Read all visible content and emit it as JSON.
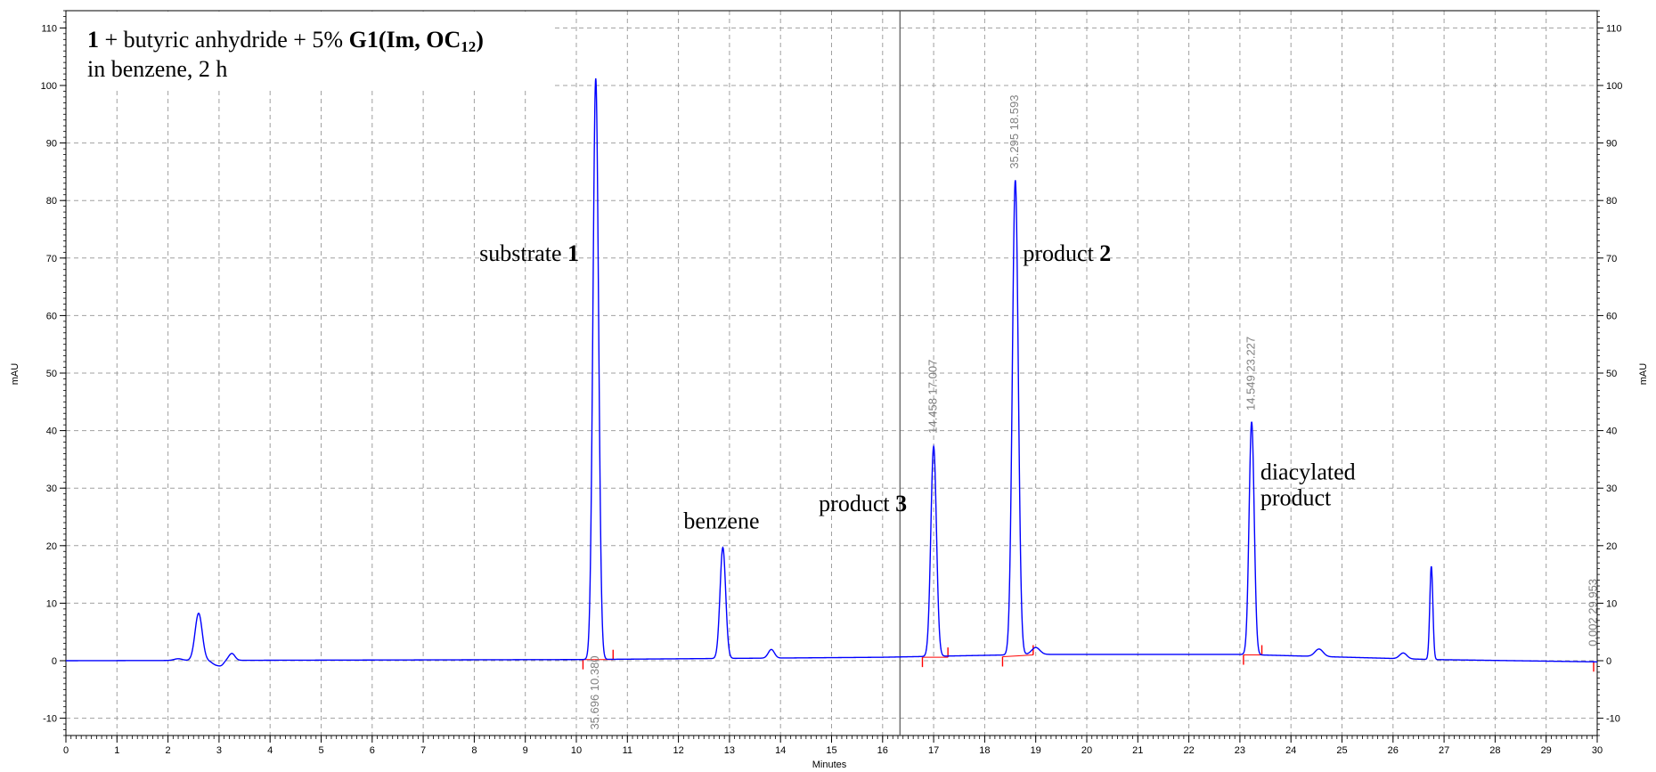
{
  "chart_data": {
    "type": "line",
    "title_line1": {
      "part1": "1",
      "part2": " + butyric anhydride + 5% ",
      "part3": "G1(Im, OC",
      "part3_sub": "12",
      "part4": ")"
    },
    "title_line2": "in benzene, 2 h",
    "xlabel": "Minutes",
    "ylabel_left": "mAU",
    "ylabel_right": "mAU",
    "xlim": [
      0,
      30
    ],
    "ylim": [
      -13,
      113
    ],
    "x_ticks": [
      0,
      1,
      2,
      3,
      4,
      5,
      6,
      7,
      8,
      9,
      10,
      11,
      12,
      13,
      14,
      15,
      16,
      17,
      18,
      19,
      20,
      21,
      22,
      23,
      24,
      25,
      26,
      27,
      28,
      29,
      30
    ],
    "y_ticks": [
      -10,
      0,
      10,
      20,
      30,
      40,
      50,
      60,
      70,
      80,
      90,
      100,
      110
    ],
    "grid": true,
    "cursor_line_x": 16.34,
    "series": [
      {
        "color": "#0000ff",
        "peaks": [
          {
            "rt": 2.2,
            "height": 0.3,
            "width": 0.08
          },
          {
            "rt": 2.6,
            "height": 8.2,
            "width": 0.07
          },
          {
            "rt": 3.25,
            "height": 1.2,
            "width": 0.06
          },
          {
            "rt": 10.38,
            "height": 101.0,
            "width": 0.055
          },
          {
            "rt": 12.87,
            "height": 19.3,
            "width": 0.055
          },
          {
            "rt": 13.82,
            "height": 1.5,
            "width": 0.06
          },
          {
            "rt": 17.0,
            "height": 36.5,
            "width": 0.055
          },
          {
            "rt": 18.6,
            "height": 82.5,
            "width": 0.058
          },
          {
            "rt": 19.0,
            "height": 1.2,
            "width": 0.08
          },
          {
            "rt": 23.23,
            "height": 40.5,
            "width": 0.05
          },
          {
            "rt": 24.55,
            "height": 1.3,
            "width": 0.08
          },
          {
            "rt": 26.2,
            "height": 1.0,
            "width": 0.07
          },
          {
            "rt": 26.75,
            "height": 16.2,
            "width": 0.03
          }
        ],
        "baseline": [
          [
            0,
            0
          ],
          [
            10.0,
            0.2
          ],
          [
            16.0,
            0.6
          ],
          [
            19.0,
            1.1
          ],
          [
            23.0,
            1.1
          ],
          [
            26.8,
            0.2
          ],
          [
            30.0,
            -0.2
          ]
        ]
      }
    ],
    "integration_marks": [
      {
        "x": 10.13,
        "y": 0.2,
        "dir": "down"
      },
      {
        "x": 10.72,
        "y": 0.2,
        "dir": "up"
      },
      {
        "x": 16.78,
        "y": 0.6,
        "dir": "down"
      },
      {
        "x": 17.28,
        "y": 0.6,
        "dir": "up"
      },
      {
        "x": 18.35,
        "y": 0.7,
        "dir": "down"
      },
      {
        "x": 18.95,
        "y": 1.0,
        "dir": "up"
      },
      {
        "x": 23.07,
        "y": 1.0,
        "dir": "down"
      },
      {
        "x": 23.43,
        "y": 1.0,
        "dir": "up"
      },
      {
        "x": 29.93,
        "y": -0.2,
        "dir": "down"
      }
    ],
    "peak_labels": [
      {
        "text": "35.696  10.380",
        "x": 10.38,
        "y": -12.0
      },
      {
        "text": "14.458  17.007",
        "x": 17.0,
        "y": 39.5
      },
      {
        "text": "35.295  18.593",
        "x": 18.6,
        "y": 85.5
      },
      {
        "text": "14.549  23.227",
        "x": 23.23,
        "y": 43.5
      },
      {
        "text": "0.002  29.953",
        "x": 29.93,
        "y": 2.5
      }
    ],
    "annotations": [
      {
        "text": "substrate ",
        "bold": "1",
        "x": 8.1,
        "y": 69.5
      },
      {
        "text": "benzene",
        "bold": "",
        "x": 12.1,
        "y": 23.0
      },
      {
        "text": "product ",
        "bold": "3",
        "x": 14.75,
        "y": 26.0
      },
      {
        "text": "product ",
        "bold": "2",
        "x": 18.75,
        "y": 69.5
      },
      {
        "text": "diacylated",
        "bold": "",
        "x": 23.4,
        "y": 31.5
      },
      {
        "text": "product",
        "bold": "",
        "x": 23.4,
        "y": 27.0
      }
    ]
  }
}
